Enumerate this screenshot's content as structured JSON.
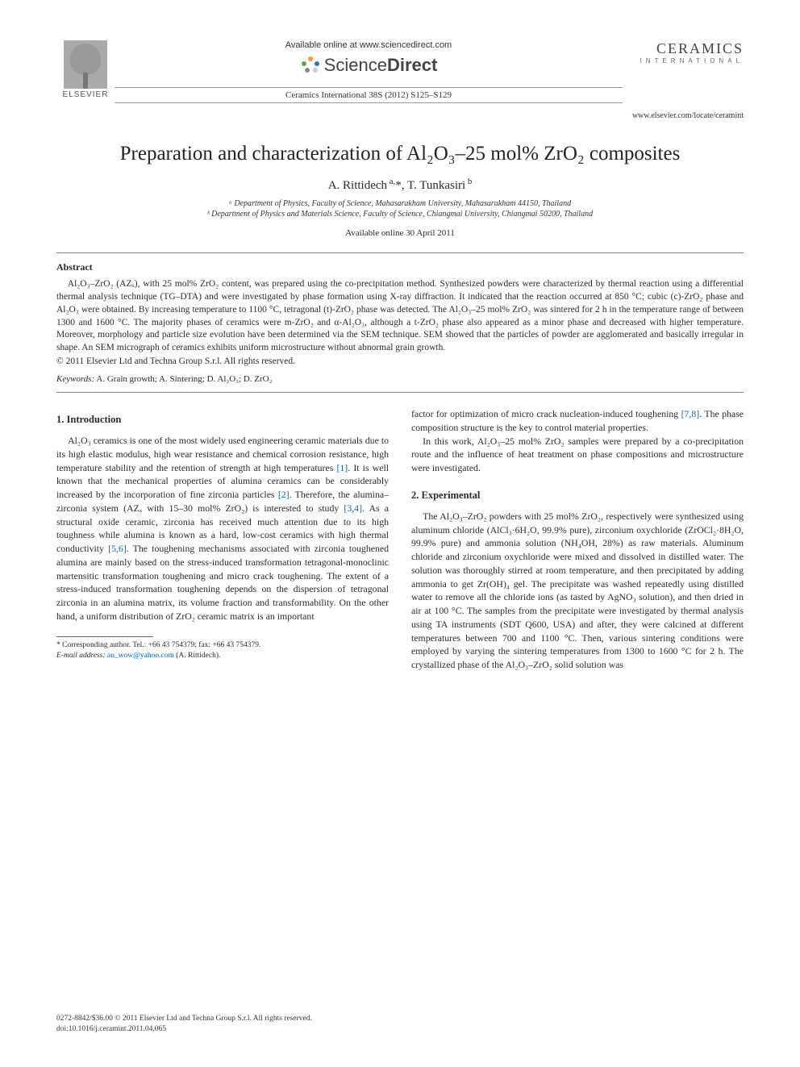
{
  "header": {
    "available_online": "Available online at www.sciencedirect.com",
    "sciencedirect_brand_1": "Science",
    "sciencedirect_brand_2": "Direct",
    "elsevier_label": "ELSEVIER",
    "ceramics_label": "CERAMICS",
    "ceramics_sub": "INTERNATIONAL",
    "citation": "Ceramics International 38S (2012) S125–S129",
    "journal_url": "www.elsevier.com/locate/ceramint",
    "sd_dots_colors": [
      "#f79b2e",
      "#5aa845",
      "#2e77bb",
      "#888888",
      "#cccccc"
    ]
  },
  "title": "Preparation and characterization of Al₂O₃–25 mol% ZrO₂ composites",
  "authors_html": "A. Rittidech <sup>a,</sup>*, T. Tunkasiri <sup>b</sup>",
  "affiliations": [
    "ᵃ Department of Physics, Faculty of Science, Mahasarakham University, Mahasarakham 44150, Thailand",
    "ᵇ Department of Physics and Materials Science, Faculty of Science, Chiangmai University, Chiangmai 50200, Thailand"
  ],
  "available_date": "Available online 30 April 2011",
  "abstract_heading": "Abstract",
  "abstract_body": "Al₂O₃–ZrO₂ (AZₓ), with 25 mol% ZrO₂ content, was prepared using the co-precipitation method. Synthesized powders were characterized by thermal reaction using a differential thermal analysis technique (TG–DTA) and were investigated by phase formation using X-ray diffraction. It indicated that the reaction occurred at 850 °C; cubic (c)-ZrO₂ phase and Al₂O₃ were obtained. By increasing temperature to 1100 °C, tetragonal (t)-ZrO₂ phase was detected. The Al₂O₃–25 mol% ZrO₂ was sintered for 2 h in the temperature range of between 1300 and 1600 °C. The majority phases of ceramics were m-ZrO₂ and α-Al₂O₃, although a t-ZrO₂ phase also appeared as a minor phase and decreased with higher temperature. Moreover, morphology and particle size evolution have been determined via the SEM technique. SEM showed that the particles of powder are agglomerated and basically irregular in shape. An SEM micrograph of ceramics exhibits uniform microstructure without abnormal grain growth.",
  "abstract_copyright": "© 2011 Elsevier Ltd and Techna Group S.r.l. All rights reserved.",
  "keywords_label": "Keywords:",
  "keywords_text": " A. Grain growth; A. Sintering; D. Al₂O₃; D. ZrO₂",
  "sections": {
    "intro_heading": "1.  Introduction",
    "intro_p1": "Al₂O₃ ceramics is one of the most widely used engineering ceramic materials due to its high elastic modulus, high wear resistance and chemical corrosion resistance, high temperature stability and the retention of strength at high temperatures [1]. It is well known that the mechanical properties of alumina ceramics can be considerably increased by the incorporation of fine zirconia particles [2]. Therefore, the alumina–zirconia system (AZₓ with 15–30 mol% ZrO₂) is interested to study [3,4]. As a structural oxide ceramic, zirconia has received much attention due to its high toughness while alumina is known as a hard, low-cost ceramics with high thermal conductivity [5,6]. The toughening mechanisms associated with zirconia toughened alumina are mainly based on the stress-induced transformation tetragonal-monoclinic martensitic transformation toughening and micro crack toughening. The extent of a stress-induced transformation toughening depends on the dispersion of tetragonal zirconia in an alumina matrix, its volume fraction and transformability. On the other hand, a uniform distribution of ZrO₂ ceramic matrix is an important",
    "intro_p2_right": "factor for optimization of micro crack nucleation-induced toughening [7,8]. The phase composition structure is the key to control material properties.",
    "intro_p3_right": "In this work, Al₂O₃–25 mol% ZrO₂ samples were prepared by a co-precipitation route and the influence of heat treatment on phase compositions and microstructure were investigated.",
    "exp_heading": "2.  Experimental",
    "exp_p1": "The Al₂O₃–ZrO₂ powders with 25 mol% ZrO₂, respectively were synthesized using aluminum chloride (AlCl₃·6H₂O, 99.9% pure), zirconium oxychloride (ZrOCl₂·8H₂O, 99.9% pure) and ammonia solution (NH₄OH, 28%) as raw materials. Aluminum chloride and zirconium oxychloride were mixed and dissolved in distilled water. The solution was thoroughly stirred at room temperature, and then precipitated by adding ammonia to get Zr(OH)₄ gel. The precipitate was washed repeatedly using distilled water to remove all the chloride ions (as tasted by AgNO₃ solution), and then dried in air at 100 °C. The samples from the precipitate were investigated by thermal analysis using TA instruments (SDT Q600, USA) and after, they were calcined at different temperatures between 700 and 1100 °C. Then, various sintering conditions were employed by varying the sintering temperatures from 1300 to 1600 °C for 2 h. The crystallized phase of the Al₂O₃–ZrO₂ solid solution was"
  },
  "footnote": {
    "corr": "* Corresponding author. Tel.: +66 43 754379; fax: +66 43 754379.",
    "email_label": "E-mail address:",
    "email": "au_wow@yahoo.com",
    "email_affil": " (A. Rittidech)."
  },
  "footer": {
    "line1": "0272-8842/$36.00 © 2011 Elsevier Ltd and Techna Group S.r.l. All rights reserved.",
    "line2": "doi:10.1016/j.ceramint.2011.04.065"
  },
  "refs_color": "#0066cc",
  "text_color": "#2a2a2a",
  "background_color": "#ffffff"
}
